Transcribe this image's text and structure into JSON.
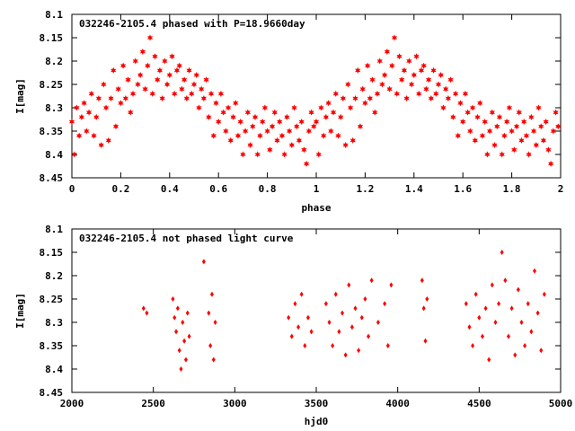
{
  "chart_data": [
    {
      "type": "scatter",
      "title": "032246-2105.4 phased with P=18.9660day",
      "xlabel": "phase",
      "ylabel": "I[mag]",
      "xlim": [
        0,
        2
      ],
      "ylim": [
        8.45,
        8.1
      ],
      "y_inverted": true,
      "x_ticks": [
        "0",
        "0.2",
        "0.4",
        "0.6",
        "0.8",
        "1",
        "1.2",
        "1.4",
        "1.6",
        "1.8",
        "2"
      ],
      "y_ticks": [
        "8.1",
        "8.15",
        "8.2",
        "8.25",
        "8.3",
        "8.35",
        "8.4",
        "8.45"
      ],
      "marker": "filled-star",
      "color": "#ff0000",
      "grid": false,
      "series": [
        {
          "x": [
            0.0,
            0.01,
            0.02,
            0.03,
            0.04,
            0.05,
            0.06,
            0.07,
            0.08,
            0.09,
            0.1,
            0.11,
            0.12,
            0.13,
            0.14,
            0.15,
            0.16,
            0.17,
            0.18,
            0.19,
            0.2,
            0.21,
            0.22,
            0.23,
            0.24,
            0.25,
            0.26,
            0.27,
            0.28,
            0.29,
            0.3,
            0.31,
            0.32,
            0.33,
            0.34,
            0.35,
            0.36,
            0.37,
            0.38,
            0.39,
            0.4,
            0.41,
            0.42,
            0.43,
            0.44,
            0.45,
            0.46,
            0.47,
            0.48,
            0.49,
            0.5,
            0.51,
            0.52,
            0.53,
            0.54,
            0.55,
            0.56,
            0.57,
            0.58,
            0.59,
            0.6,
            0.61,
            0.62,
            0.63,
            0.64,
            0.65,
            0.66,
            0.67,
            0.68,
            0.69,
            0.7,
            0.71,
            0.72,
            0.73,
            0.74,
            0.75,
            0.76,
            0.77,
            0.78,
            0.79,
            0.8,
            0.81,
            0.82,
            0.83,
            0.84,
            0.85,
            0.86,
            0.87,
            0.88,
            0.89,
            0.9,
            0.91,
            0.92,
            0.93,
            0.94,
            0.95,
            0.96,
            0.97,
            0.98,
            0.99
          ],
          "y": [
            8.33,
            8.4,
            8.3,
            8.36,
            8.32,
            8.29,
            8.35,
            8.31,
            8.27,
            8.36,
            8.32,
            8.28,
            8.38,
            8.25,
            8.3,
            8.37,
            8.28,
            8.22,
            8.34,
            8.26,
            8.29,
            8.21,
            8.28,
            8.24,
            8.31,
            8.27,
            8.2,
            8.25,
            8.23,
            8.18,
            8.26,
            8.21,
            8.15,
            8.27,
            8.19,
            8.24,
            8.22,
            8.28,
            8.2,
            8.25,
            8.23,
            8.19,
            8.27,
            8.22,
            8.21,
            8.26,
            8.24,
            8.28,
            8.22,
            8.27,
            8.25,
            8.23,
            8.3,
            8.26,
            8.28,
            8.24,
            8.32,
            8.27,
            8.36,
            8.29,
            8.33,
            8.27,
            8.31,
            8.35,
            8.3,
            8.37,
            8.32,
            8.29,
            8.36,
            8.33,
            8.4,
            8.35,
            8.31,
            8.38,
            8.34,
            8.32,
            8.4,
            8.36,
            8.33,
            8.3,
            8.35,
            8.39,
            8.34,
            8.31,
            8.37,
            8.33,
            8.36,
            8.4,
            8.32,
            8.35,
            8.38,
            8.3,
            8.34,
            8.37,
            8.33,
            8.39,
            8.42,
            8.35,
            8.31,
            8.34
          ]
        }
      ]
    },
    {
      "type": "scatter",
      "title": "032246-2105.4 not phased light curve",
      "xlabel": "hjd0",
      "ylabel": "I[mag]",
      "xlim": [
        2000,
        5000
      ],
      "ylim": [
        8.45,
        8.1
      ],
      "y_inverted": true,
      "x_ticks": [
        "2000",
        "2500",
        "3000",
        "3500",
        "4000",
        "4500",
        "5000"
      ],
      "y_ticks": [
        "8.1",
        "8.15",
        "8.2",
        "8.25",
        "8.3",
        "8.35",
        "8.4",
        "8.45"
      ],
      "marker": "filled-diamond",
      "color": "#ff0000",
      "grid": false,
      "series": [
        {
          "x": [
            2440,
            2460,
            2620,
            2630,
            2640,
            2650,
            2660,
            2670,
            2680,
            2690,
            2700,
            2710,
            2720,
            2810,
            2840,
            2850,
            2860,
            2870,
            2880,
            3330,
            3350,
            3370,
            3390,
            3410,
            3430,
            3450,
            3470,
            3560,
            3580,
            3600,
            3620,
            3640,
            3660,
            3680,
            3700,
            3720,
            3740,
            3760,
            3780,
            3800,
            3820,
            3840,
            3880,
            3920,
            3940,
            3960,
            4150,
            4160,
            4170,
            4180,
            4420,
            4440,
            4460,
            4480,
            4500,
            4520,
            4540,
            4560,
            4580,
            4600,
            4620,
            4640,
            4660,
            4680,
            4700,
            4720,
            4740,
            4760,
            4780,
            4800,
            4820,
            4840,
            4860,
            4880,
            4900
          ],
          "y": [
            8.27,
            8.28,
            8.25,
            8.29,
            8.32,
            8.27,
            8.36,
            8.4,
            8.3,
            8.34,
            8.38,
            8.28,
            8.33,
            8.17,
            8.28,
            8.35,
            8.24,
            8.38,
            8.3,
            8.29,
            8.33,
            8.26,
            8.31,
            8.24,
            8.35,
            8.29,
            8.32,
            8.26,
            8.3,
            8.35,
            8.24,
            8.32,
            8.28,
            8.37,
            8.22,
            8.31,
            8.27,
            8.36,
            8.29,
            8.25,
            8.33,
            8.21,
            8.3,
            8.26,
            8.35,
            8.22,
            8.21,
            8.27,
            8.34,
            8.25,
            8.26,
            8.31,
            8.35,
            8.24,
            8.29,
            8.33,
            8.27,
            8.38,
            8.22,
            8.3,
            8.26,
            8.15,
            8.21,
            8.33,
            8.27,
            8.37,
            8.23,
            8.3,
            8.35,
            8.26,
            8.32,
            8.19,
            8.28,
            8.36,
            8.24
          ]
        }
      ]
    }
  ]
}
